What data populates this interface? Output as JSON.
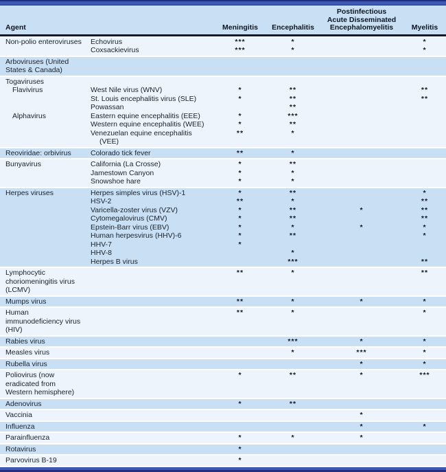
{
  "header": {
    "agent": "Agent",
    "meningitis": "Meningitis",
    "encephalitis": "Encephalitis",
    "adem": "Postinfectious\nAcute Disseminated\nEncephalomyelitis",
    "myelitis": "Myelitis"
  },
  "colors": {
    "band_blue": "#c9dff4",
    "band_pale": "#edf4fb",
    "bar_navy": "#232f7d",
    "bar_royal": "#3d59b5",
    "divider": "#15182b",
    "text": "#17212b"
  },
  "bands": [
    {
      "shade": "pale",
      "rows": [
        {
          "group": "Non-polio enteroviruses",
          "agent": "Echovirus",
          "meningitis": "***",
          "encephalitis": "*",
          "adem": "",
          "myelitis": "*"
        },
        {
          "group": "",
          "agent": "Coxsackievirus",
          "meningitis": "***",
          "encephalitis": "*",
          "adem": "",
          "myelitis": "*"
        }
      ]
    },
    {
      "shade": "blue",
      "rows": [
        {
          "group": "Arboviruses (United States & Canada)",
          "agent": "",
          "meningitis": "",
          "encephalitis": "",
          "adem": "",
          "myelitis": ""
        }
      ]
    },
    {
      "shade": "pale",
      "rows": [
        {
          "group": "Togaviruses",
          "agent": "",
          "meningitis": "",
          "encephalitis": "",
          "adem": "",
          "myelitis": ""
        },
        {
          "group": "Flavivirus",
          "group_indent": true,
          "agent": "West Nile virus (WNV)",
          "meningitis": "*",
          "encephalitis": "**",
          "adem": "",
          "myelitis": "**"
        },
        {
          "group": "",
          "agent": "St. Louis encephalitis virus (SLE)",
          "meningitis": "*",
          "encephalitis": "**",
          "adem": "",
          "myelitis": "**"
        },
        {
          "group": "",
          "agent": "Powassan",
          "meningitis": "",
          "encephalitis": "**",
          "adem": "",
          "myelitis": ""
        },
        {
          "group": "Alphavirus",
          "group_indent": true,
          "agent": "Eastern equine encephalitis (EEE)",
          "meningitis": "*",
          "encephalitis": "***",
          "adem": "",
          "myelitis": ""
        },
        {
          "group": "",
          "agent": "Western equine encephalitis (WEE)",
          "meningitis": "*",
          "encephalitis": "**",
          "adem": "",
          "myelitis": ""
        },
        {
          "group": "",
          "agent": "Venezuelan equine encephalitis (VEE)",
          "meningitis": "**",
          "encephalitis": "*",
          "adem": "",
          "myelitis": ""
        }
      ]
    },
    {
      "shade": "blue",
      "rows": [
        {
          "group": "Reoviridae: orbivirus",
          "agent": "Colorado tick fever",
          "meningitis": "**",
          "encephalitis": "*",
          "adem": "",
          "myelitis": ""
        }
      ]
    },
    {
      "shade": "pale",
      "rows": [
        {
          "group": "Bunyavirus",
          "agent": "California (La Crosse)",
          "meningitis": "*",
          "encephalitis": "**",
          "adem": "",
          "myelitis": ""
        },
        {
          "group": "",
          "agent": "Jamestown Canyon",
          "meningitis": "*",
          "encephalitis": "*",
          "adem": "",
          "myelitis": ""
        },
        {
          "group": "",
          "agent": "Snowshoe hare",
          "meningitis": "*",
          "encephalitis": "*",
          "adem": "",
          "myelitis": ""
        }
      ]
    },
    {
      "shade": "blue",
      "rows": [
        {
          "group": "Herpes viruses",
          "agent": "Herpes simples virus (HSV)-1",
          "meningitis": "*",
          "encephalitis": "**",
          "adem": "",
          "myelitis": "*"
        },
        {
          "group": "",
          "agent": "HSV-2",
          "meningitis": "**",
          "encephalitis": "*",
          "adem": "",
          "myelitis": "**"
        },
        {
          "group": "",
          "agent": "Varicella-zoster virus (VZV)",
          "meningitis": "*",
          "encephalitis": "**",
          "adem": "*",
          "myelitis": "**"
        },
        {
          "group": "",
          "agent": "Cytomegalovirus (CMV)",
          "meningitis": "*",
          "encephalitis": "**",
          "adem": "",
          "myelitis": "**"
        },
        {
          "group": "",
          "agent": "Epstein-Barr virus (EBV)",
          "meningitis": "*",
          "encephalitis": "*",
          "adem": "*",
          "myelitis": "*"
        },
        {
          "group": "",
          "agent": "Human herpesvirus (HHV)-6",
          "meningitis": "*",
          "encephalitis": "**",
          "adem": "",
          "myelitis": "*"
        },
        {
          "group": "",
          "agent": "HHV-7",
          "meningitis": "*",
          "encephalitis": "",
          "adem": "",
          "myelitis": ""
        },
        {
          "group": "",
          "agent": "HHV-8",
          "meningitis": "",
          "encephalitis": "*",
          "adem": "",
          "myelitis": ""
        },
        {
          "group": "",
          "agent": "Herpes B virus",
          "meningitis": "",
          "encephalitis": "***",
          "adem": "",
          "myelitis": "**"
        }
      ]
    },
    {
      "shade": "pale",
      "rows": [
        {
          "group": "Lymphocytic choriomeningitis virus (LCMV)",
          "agent": "",
          "meningitis": "**",
          "encephalitis": "*",
          "adem": "",
          "myelitis": "**"
        }
      ]
    },
    {
      "shade": "blue",
      "rows": [
        {
          "group": "Mumps virus",
          "agent": "",
          "meningitis": "**",
          "encephalitis": "*",
          "adem": "*",
          "myelitis": "*"
        }
      ]
    },
    {
      "shade": "pale",
      "rows": [
        {
          "group": "Human immunodeficiency virus (HIV)",
          "agent": "",
          "meningitis": "**",
          "encephalitis": "*",
          "adem": "",
          "myelitis": "*"
        }
      ]
    },
    {
      "shade": "blue",
      "rows": [
        {
          "group": "Rabies virus",
          "agent": "",
          "meningitis": "",
          "encephalitis": "***",
          "adem": "*",
          "myelitis": "*"
        }
      ]
    },
    {
      "shade": "pale",
      "rows": [
        {
          "group": "Measles virus",
          "agent": "",
          "meningitis": "",
          "encephalitis": "*",
          "adem": "***",
          "myelitis": "*"
        }
      ]
    },
    {
      "shade": "blue",
      "rows": [
        {
          "group": "Rubella virus",
          "agent": "",
          "meningitis": "",
          "encephalitis": "",
          "adem": "*",
          "myelitis": "*"
        }
      ]
    },
    {
      "shade": "pale",
      "rows": [
        {
          "group": "Poliovirus (now eradicated from Western hemisphere)",
          "agent": "",
          "meningitis": "*",
          "encephalitis": "**",
          "adem": "*",
          "myelitis": "***"
        }
      ]
    },
    {
      "shade": "blue",
      "rows": [
        {
          "group": "Adenovirus",
          "agent": "",
          "meningitis": "*",
          "encephalitis": "**",
          "adem": "",
          "myelitis": ""
        }
      ]
    },
    {
      "shade": "pale",
      "rows": [
        {
          "group": "Vaccinia",
          "agent": "",
          "meningitis": "",
          "encephalitis": "",
          "adem": "*",
          "myelitis": ""
        }
      ]
    },
    {
      "shade": "blue",
      "rows": [
        {
          "group": "Influenza",
          "agent": "",
          "meningitis": "",
          "encephalitis": "",
          "adem": "*",
          "myelitis": "*"
        }
      ]
    },
    {
      "shade": "pale",
      "rows": [
        {
          "group": "Parainfluenza",
          "agent": "",
          "meningitis": "*",
          "encephalitis": "*",
          "adem": "*",
          "myelitis": ""
        }
      ]
    },
    {
      "shade": "blue",
      "rows": [
        {
          "group": "Rotavirus",
          "agent": "",
          "meningitis": "*",
          "encephalitis": "",
          "adem": "",
          "myelitis": ""
        }
      ]
    },
    {
      "shade": "pale",
      "rows": [
        {
          "group": "Parvovirus B-19",
          "agent": "",
          "meningitis": "*",
          "encephalitis": "",
          "adem": "",
          "myelitis": ""
        }
      ]
    }
  ]
}
